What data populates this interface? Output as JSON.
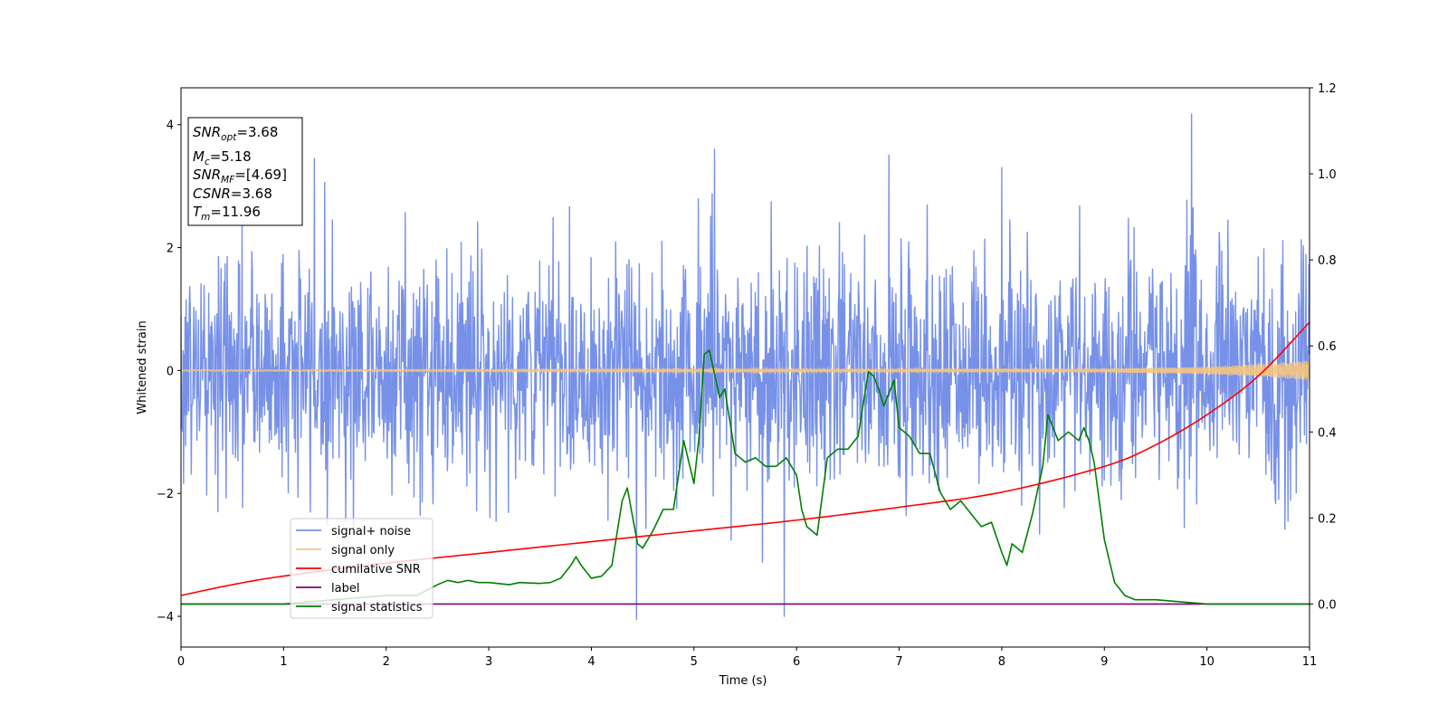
{
  "chart_data": {
    "type": "line",
    "xlabel": "Time (s)",
    "ylabel": "Whitened strain",
    "xlim": [
      0,
      11
    ],
    "ylim": [
      -4.5,
      4.6
    ],
    "y2lim": [
      -0.1,
      1.2
    ],
    "x_ticks": [
      "0",
      "1",
      "2",
      "3",
      "4",
      "5",
      "6",
      "7",
      "8",
      "9",
      "10",
      "11"
    ],
    "y_ticks": [
      "4",
      "2",
      "0",
      "−2",
      "−4"
    ],
    "y2_ticks": [
      "1.2",
      "1.0",
      "0.8",
      "0.6",
      "0.4",
      "0.2",
      "0.0"
    ],
    "grid": false,
    "legend_position": "lower-left",
    "annotation_box": {
      "lines": [
        {
          "base": "SNR",
          "sub": "opt",
          "value": "=3.68"
        },
        {
          "base": "M",
          "sub": "c",
          "value": "=5.18"
        },
        {
          "base": "SNR",
          "sub": "MF",
          "value": "=[4.69]"
        },
        {
          "base": "CSNR",
          "sub": "",
          "value": "=3.68"
        },
        {
          "base": "T",
          "sub": "m",
          "value": "=11.96"
        }
      ]
    },
    "series": [
      {
        "name": "signal+ noise",
        "color": "#7791e8",
        "axis": "left",
        "description_values": {
          "mean": 0.0,
          "std": 0.95,
          "min": -4.1,
          "max": 4.17,
          "n_samples": 2200
        }
      },
      {
        "name": "signal only",
        "color": "#f5c77e",
        "axis": "left",
        "envelope": {
          "x": [
            0,
            9,
            10,
            10.5,
            11
          ],
          "amplitude": [
            0.01,
            0.03,
            0.06,
            0.1,
            0.16
          ]
        }
      },
      {
        "name": "cumilative SNR",
        "color": "#ff0000",
        "axis": "right",
        "x": [
          0,
          0.5,
          1,
          2,
          3,
          4,
          5,
          6,
          7,
          8,
          9,
          9.5,
          10,
          10.5,
          11
        ],
        "values": [
          0.02,
          0.045,
          0.065,
          0.095,
          0.12,
          0.145,
          0.17,
          0.195,
          0.225,
          0.26,
          0.32,
          0.37,
          0.44,
          0.53,
          0.655
        ]
      },
      {
        "name": "label",
        "color": "#800080",
        "axis": "right",
        "x": [
          0,
          11
        ],
        "values": [
          0.0,
          0.0
        ]
      },
      {
        "name": "signal statistics",
        "color": "#008000",
        "axis": "right",
        "x": [
          0,
          1,
          2,
          2.3,
          2.5,
          2.6,
          2.7,
          2.8,
          2.9,
          3,
          3.2,
          3.3,
          3.5,
          3.6,
          3.7,
          3.8,
          3.85,
          3.9,
          4,
          4.1,
          4.2,
          4.3,
          4.35,
          4.45,
          4.5,
          4.6,
          4.7,
          4.8,
          4.9,
          5.0,
          5.05,
          5.1,
          5.15,
          5.25,
          5.3,
          5.4,
          5.5,
          5.6,
          5.7,
          5.8,
          5.9,
          6.0,
          6.05,
          6.1,
          6.2,
          6.3,
          6.4,
          6.5,
          6.6,
          6.7,
          6.75,
          6.8,
          6.85,
          6.95,
          7.0,
          7.1,
          7.2,
          7.3,
          7.4,
          7.5,
          7.6,
          7.7,
          7.8,
          7.9,
          8.0,
          8.05,
          8.1,
          8.2,
          8.3,
          8.4,
          8.45,
          8.55,
          8.65,
          8.75,
          8.8,
          8.85,
          8.9,
          9.0,
          9.1,
          9.2,
          9.3,
          9.5,
          10,
          10.5,
          11
        ],
        "values": [
          0.0,
          0.0,
          0.02,
          0.02,
          0.045,
          0.055,
          0.05,
          0.055,
          0.05,
          0.05,
          0.045,
          0.05,
          0.048,
          0.05,
          0.06,
          0.09,
          0.11,
          0.09,
          0.06,
          0.065,
          0.09,
          0.24,
          0.27,
          0.14,
          0.13,
          0.17,
          0.22,
          0.22,
          0.38,
          0.28,
          0.39,
          0.58,
          0.59,
          0.48,
          0.5,
          0.35,
          0.33,
          0.34,
          0.32,
          0.32,
          0.34,
          0.3,
          0.22,
          0.18,
          0.16,
          0.34,
          0.36,
          0.36,
          0.39,
          0.54,
          0.53,
          0.5,
          0.46,
          0.52,
          0.41,
          0.39,
          0.35,
          0.35,
          0.26,
          0.22,
          0.24,
          0.21,
          0.18,
          0.19,
          0.12,
          0.09,
          0.14,
          0.12,
          0.21,
          0.32,
          0.44,
          0.38,
          0.4,
          0.38,
          0.41,
          0.38,
          0.33,
          0.15,
          0.05,
          0.02,
          0.01,
          0.01,
          0.0,
          0.0,
          0.0
        ]
      }
    ]
  }
}
